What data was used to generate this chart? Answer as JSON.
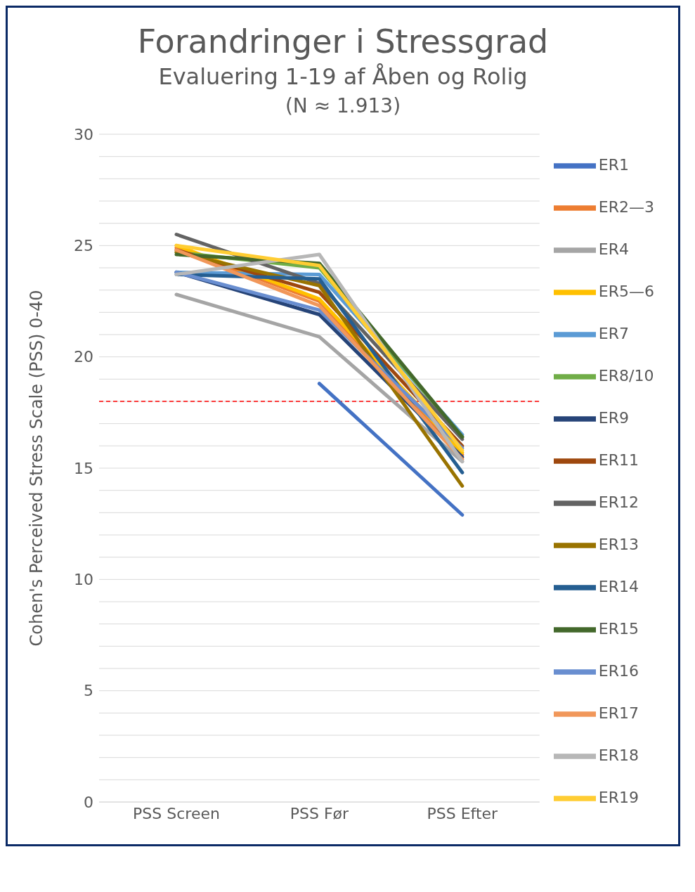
{
  "chart_data": {
    "type": "line",
    "title": "Forandringer i Stressgrad",
    "subtitle": "Evaluering 1-19 af Åben og Rolig",
    "annotations": [
      "(N ≈ 1.913)"
    ],
    "ylabel": "Cohen's Perceived Stress Scale (PSS) 0-40",
    "categories": [
      "PSS Screen",
      "PSS Før",
      "PSS Efter"
    ],
    "ylim": [
      0,
      30
    ],
    "yticks": [
      0,
      {
        "value": 1,
        "label": null
      },
      {
        "value": 2,
        "label": null
      },
      {
        "value": 3,
        "label": null
      },
      {
        "value": 4,
        "label": null
      },
      5,
      {
        "value": 6,
        "label": null
      },
      {
        "value": 7,
        "label": null
      },
      {
        "value": 8,
        "label": null
      },
      {
        "value": 9,
        "label": null
      },
      10,
      {
        "value": 11,
        "label": null
      },
      {
        "value": 12,
        "label": null
      },
      {
        "value": 13,
        "label": null
      },
      {
        "value": 14,
        "label": null
      },
      15,
      {
        "value": 16,
        "label": null
      },
      {
        "value": 17,
        "label": null
      },
      {
        "value": 18,
        "label": null
      },
      {
        "value": 19,
        "label": null
      },
      20,
      {
        "value": 21,
        "label": null
      },
      {
        "value": 22,
        "label": null
      },
      {
        "value": 23,
        "label": null
      },
      {
        "value": 24,
        "label": null
      },
      25,
      {
        "value": 26,
        "label": null
      },
      {
        "value": 27,
        "label": null
      },
      {
        "value": 28,
        "label": null
      },
      {
        "value": 29,
        "label": null
      },
      30
    ],
    "grid": "y",
    "legend": "right",
    "marker": "none",
    "line_style": "solid",
    "ref_lines": [
      {
        "axis": "y",
        "value": 18,
        "color": "#ff0000",
        "line_style": "dashed"
      }
    ],
    "series": [
      {
        "name": "ER1",
        "color": "#4472c4",
        "values": [
          null,
          18.8,
          12.9
        ]
      },
      {
        "name": "ER2—3",
        "color": "#ed7d31",
        "values": [
          24.9,
          22.5,
          15.6
        ]
      },
      {
        "name": "ER4",
        "color": "#a5a5a5",
        "values": [
          22.8,
          20.9,
          15.3
        ]
      },
      {
        "name": "ER5—6",
        "color": "#ffc000",
        "values": [
          25.0,
          22.6,
          15.7
        ]
      },
      {
        "name": "ER7",
        "color": "#5b9bd5",
        "values": [
          23.8,
          23.7,
          16.5
        ]
      },
      {
        "name": "ER8/10",
        "color": "#70ad47",
        "values": [
          24.7,
          24.0,
          16.4
        ]
      },
      {
        "name": "ER9",
        "color": "#264478",
        "values": [
          23.8,
          21.9,
          15.5
        ]
      },
      {
        "name": "ER11",
        "color": "#9e480e",
        "values": [
          24.8,
          22.9,
          16.0
        ]
      },
      {
        "name": "ER12",
        "color": "#636363",
        "values": [
          25.5,
          23.3,
          16.3
        ]
      },
      {
        "name": "ER13",
        "color": "#997300",
        "values": [
          24.7,
          23.2,
          14.2
        ]
      },
      {
        "name": "ER14",
        "color": "#255e91",
        "values": [
          23.7,
          23.5,
          14.8
        ]
      },
      {
        "name": "ER15",
        "color": "#43682b",
        "values": [
          24.6,
          24.2,
          16.4
        ]
      },
      {
        "name": "ER16",
        "color": "#698ed0",
        "values": [
          23.8,
          22.1,
          15.9
        ]
      },
      {
        "name": "ER17",
        "color": "#f1975a",
        "values": [
          24.8,
          22.3,
          15.4
        ]
      },
      {
        "name": "ER18",
        "color": "#b7b7b7",
        "values": [
          23.7,
          24.6,
          15.3
        ]
      },
      {
        "name": "ER19",
        "color": "#ffcd33",
        "values": [
          25.0,
          24.1,
          15.8
        ]
      }
    ]
  }
}
